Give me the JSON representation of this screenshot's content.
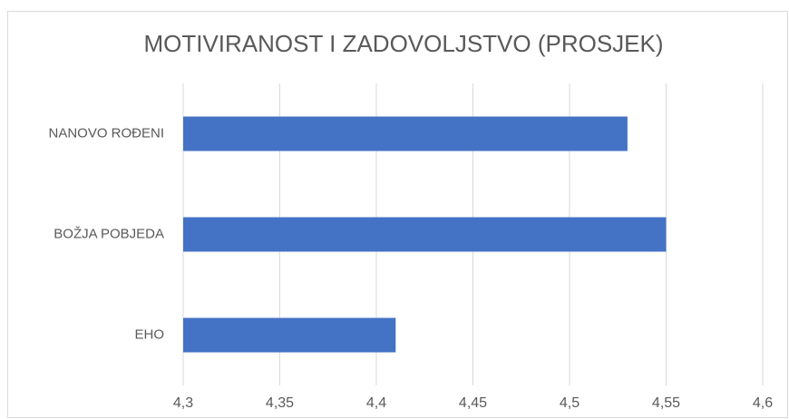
{
  "chart_data": {
    "type": "bar",
    "orientation": "horizontal",
    "title": "MOTIVIRANOST I ZADOVOLJSTVO (PROSJEK)",
    "categories": [
      "NANOVO ROĐENI",
      "BOŽJA POBJEDA",
      "EHO"
    ],
    "values": [
      4.53,
      4.55,
      4.41
    ],
    "color": "#4472c4",
    "xlim": [
      4.3,
      4.6
    ],
    "xticks": [
      {
        "value": 4.3,
        "label": "4,3"
      },
      {
        "value": 4.35,
        "label": "4,35"
      },
      {
        "value": 4.4,
        "label": "4,4"
      },
      {
        "value": 4.45,
        "label": "4,45"
      },
      {
        "value": 4.5,
        "label": "4,5"
      },
      {
        "value": 4.55,
        "label": "4,55"
      },
      {
        "value": 4.6,
        "label": "4,6"
      }
    ],
    "grid": true
  }
}
